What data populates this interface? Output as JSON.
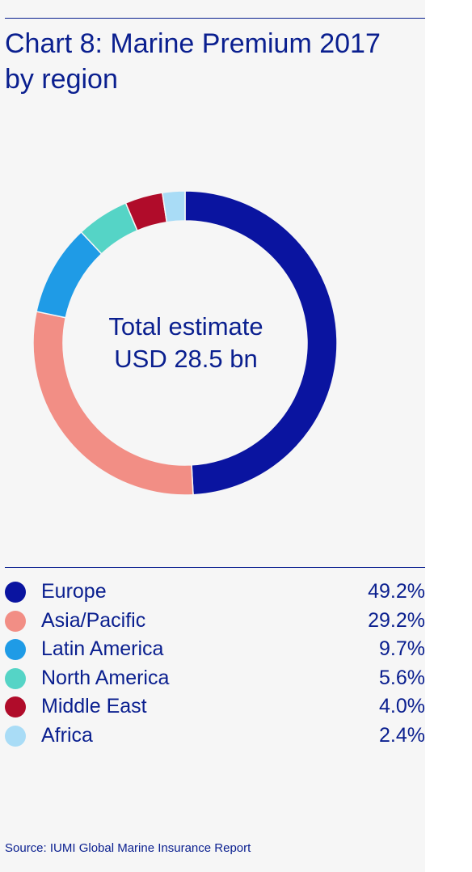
{
  "title_line1": "Chart 8: Marine Premium 2017",
  "title_line2": "by region",
  "center_line1": "Total estimate",
  "center_line2": "USD 28.5 bn",
  "source": "Source: IUMI Global Marine Insurance Report",
  "chart_data": {
    "type": "pie",
    "style": "donut",
    "title": "Chart 8: Marine Premium 2017 by region",
    "total_label": "Total estimate USD 28.5 bn",
    "categories": [
      "Europe",
      "Asia/Pacific",
      "Latin America",
      "North America",
      "Middle East",
      "Africa"
    ],
    "values": [
      49.2,
      29.2,
      9.7,
      5.6,
      4.0,
      2.4
    ],
    "value_labels": [
      "49.2%",
      "29.2%",
      "9.7%",
      "5.6%",
      "4.0%",
      "2.4%"
    ],
    "colors": [
      "#0a14a0",
      "#f28e85",
      "#1f9be6",
      "#55d4c6",
      "#b00c2a",
      "#a9dcf6"
    ],
    "legend_position": "bottom",
    "unit": "%"
  }
}
